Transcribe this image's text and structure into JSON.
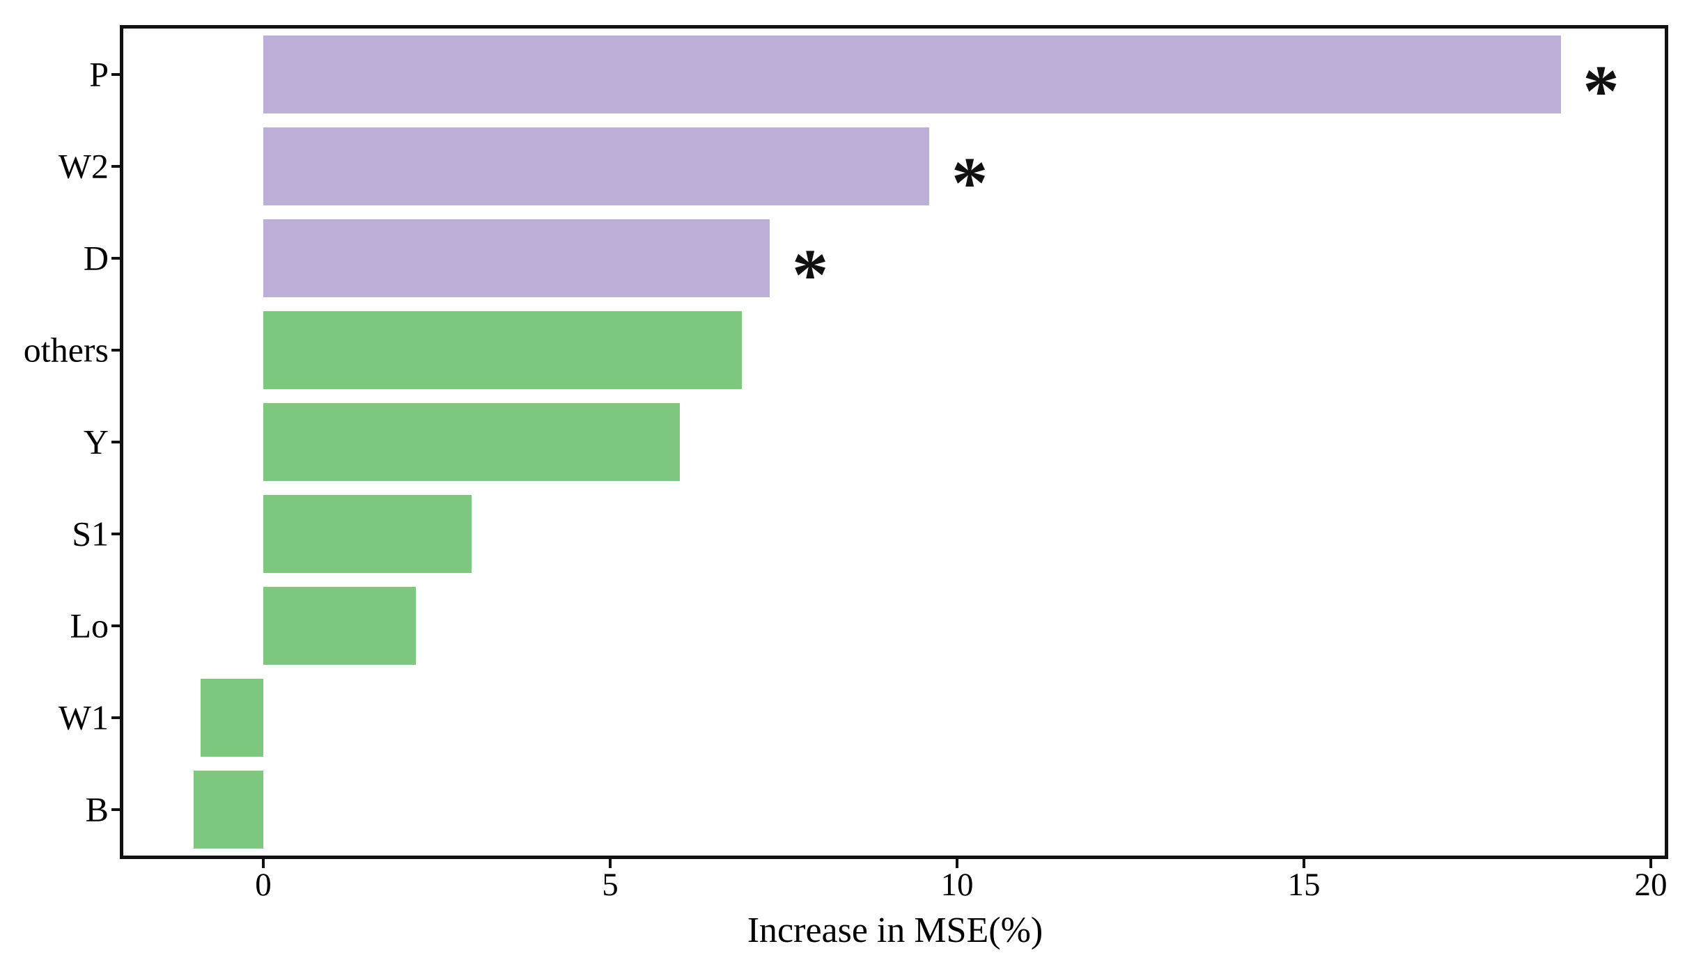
{
  "chart_data": {
    "type": "bar",
    "orientation": "horizontal",
    "xlabel": "Increase in MSE(%)",
    "categories": [
      "P",
      "W2",
      "D",
      "others",
      "Y",
      "S1",
      "Lo",
      "W1",
      "B"
    ],
    "values": [
      18.7,
      9.6,
      7.3,
      6.9,
      6.0,
      3.0,
      2.2,
      -0.9,
      -1.0
    ],
    "significant": [
      true,
      true,
      true,
      false,
      false,
      false,
      false,
      false,
      false
    ],
    "significance_marker": "*",
    "bar_colors": [
      "#beafd8",
      "#beafd8",
      "#beafd8",
      "#7dc87e",
      "#7dc87e",
      "#7dc87e",
      "#7dc87e",
      "#7dc87e",
      "#7dc87e"
    ],
    "x_ticks": [
      0,
      5,
      10,
      15,
      20
    ],
    "xlim": [
      -2.04,
      20.23
    ],
    "grid": false
  },
  "colors": {
    "purple_bar": "#beafd8",
    "green_bar": "#7dc87e",
    "axis": "#111111",
    "background": "#ffffff"
  }
}
